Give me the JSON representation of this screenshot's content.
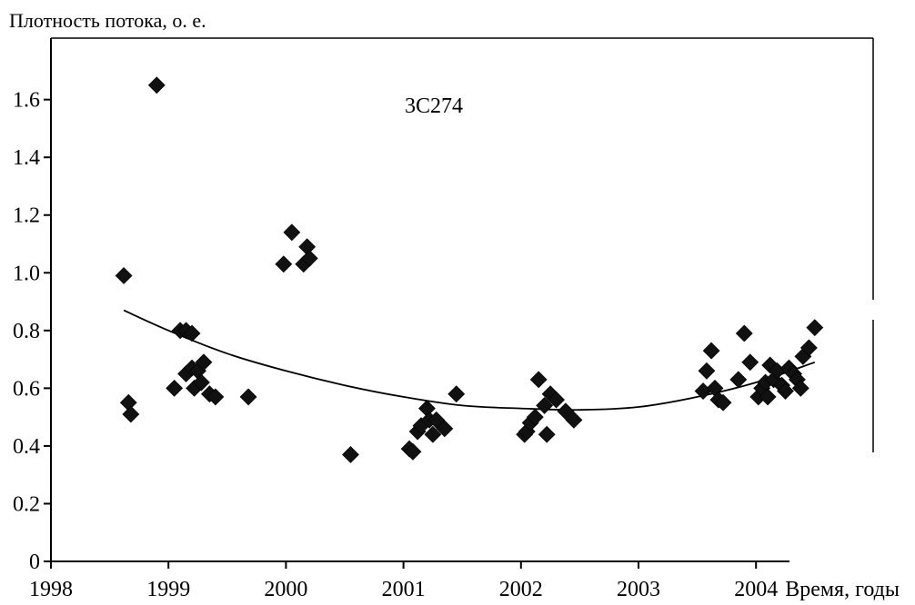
{
  "chart_data": {
    "type": "scatter",
    "title": "",
    "ylabel": "Плотность потока, о. е.",
    "xlabel": "Время, годы",
    "annotation": "3C274",
    "xlim": [
      1998,
      2005
    ],
    "ylim": [
      0,
      1.75
    ],
    "x_ticks": [
      "1998",
      "1999",
      "2000",
      "2001",
      "2002",
      "2003",
      "2004"
    ],
    "y_ticks": [
      "0",
      "0.2",
      "0.4",
      "0.6",
      "0.8",
      "1.0",
      "1.2",
      "1.4",
      "1.6"
    ],
    "grid": false,
    "legend": "none",
    "marker": "diamond",
    "marker_color": "#111111",
    "points": [
      [
        1998.62,
        0.99
      ],
      [
        1998.66,
        0.55
      ],
      [
        1998.68,
        0.51
      ],
      [
        1998.9,
        1.65
      ],
      [
        1999.05,
        0.6
      ],
      [
        1999.1,
        0.8
      ],
      [
        1999.15,
        0.8
      ],
      [
        1999.2,
        0.79
      ],
      [
        1999.15,
        0.65
      ],
      [
        1999.2,
        0.67
      ],
      [
        1999.22,
        0.6
      ],
      [
        1999.25,
        0.66
      ],
      [
        1999.28,
        0.62
      ],
      [
        1999.3,
        0.69
      ],
      [
        1999.35,
        0.58
      ],
      [
        1999.4,
        0.57
      ],
      [
        1999.68,
        0.57
      ],
      [
        1999.98,
        1.03
      ],
      [
        2000.05,
        1.14
      ],
      [
        2000.15,
        1.03
      ],
      [
        2000.18,
        1.09
      ],
      [
        2000.2,
        1.05
      ],
      [
        2000.55,
        0.37
      ],
      [
        2001.05,
        0.39
      ],
      [
        2001.08,
        0.38
      ],
      [
        2001.12,
        0.45
      ],
      [
        2001.15,
        0.47
      ],
      [
        2001.2,
        0.53
      ],
      [
        2001.22,
        0.49
      ],
      [
        2001.25,
        0.44
      ],
      [
        2001.28,
        0.49
      ],
      [
        2001.35,
        0.46
      ],
      [
        2001.45,
        0.58
      ],
      [
        2002.03,
        0.44
      ],
      [
        2002.05,
        0.45
      ],
      [
        2002.08,
        0.48
      ],
      [
        2002.12,
        0.5
      ],
      [
        2002.15,
        0.63
      ],
      [
        2002.2,
        0.54
      ],
      [
        2002.22,
        0.44
      ],
      [
        2002.25,
        0.58
      ],
      [
        2002.3,
        0.56
      ],
      [
        2002.38,
        0.52
      ],
      [
        2002.45,
        0.49
      ],
      [
        2003.55,
        0.59
      ],
      [
        2003.58,
        0.66
      ],
      [
        2003.62,
        0.73
      ],
      [
        2003.65,
        0.6
      ],
      [
        2003.68,
        0.56
      ],
      [
        2003.72,
        0.55
      ],
      [
        2003.85,
        0.63
      ],
      [
        2003.9,
        0.79
      ],
      [
        2003.95,
        0.69
      ],
      [
        2004.02,
        0.57
      ],
      [
        2004.05,
        0.6
      ],
      [
        2004.08,
        0.62
      ],
      [
        2004.1,
        0.57
      ],
      [
        2004.12,
        0.68
      ],
      [
        2004.15,
        0.63
      ],
      [
        2004.18,
        0.66
      ],
      [
        2004.22,
        0.61
      ],
      [
        2004.25,
        0.59
      ],
      [
        2004.28,
        0.67
      ],
      [
        2004.32,
        0.65
      ],
      [
        2004.35,
        0.63
      ],
      [
        2004.38,
        0.6
      ],
      [
        2004.4,
        0.71
      ],
      [
        2004.45,
        0.74
      ],
      [
        2004.5,
        0.81
      ]
    ],
    "trend": {
      "type": "curve",
      "x": [
        1998.62,
        1999.0,
        1999.5,
        2000.0,
        2000.5,
        2001.0,
        2001.5,
        2002.0,
        2002.5,
        2003.0,
        2003.5,
        2004.0,
        2004.5
      ],
      "y": [
        0.87,
        0.8,
        0.72,
        0.66,
        0.61,
        0.57,
        0.54,
        0.53,
        0.525,
        0.535,
        0.57,
        0.62,
        0.69
      ]
    }
  }
}
